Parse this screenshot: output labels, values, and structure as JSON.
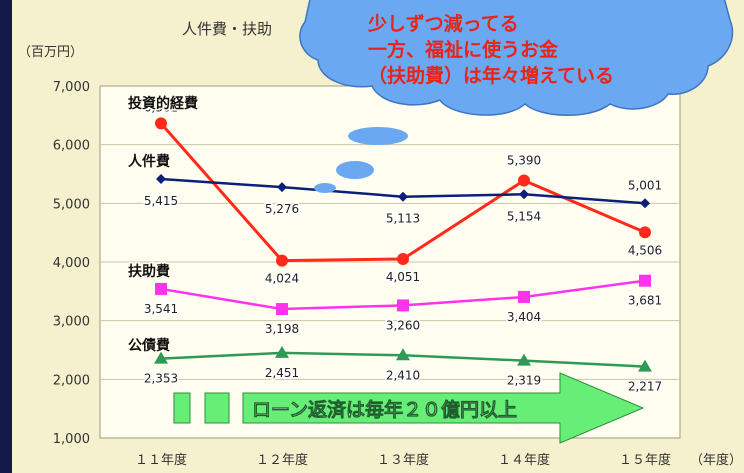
{
  "chart_data": {
    "type": "line",
    "title": "人件費・扶助",
    "yunit": "（百万円）",
    "xunit": "（年度）",
    "categories": [
      "１１年度",
      "１２年度",
      "１３年度",
      "１４年度",
      "１５年度"
    ],
    "yticks": [
      "1,000",
      "2,000",
      "3,000",
      "4,000",
      "5,000",
      "6,000",
      "7,000"
    ],
    "ylim": [
      1000,
      7000
    ],
    "grid": true,
    "series": [
      {
        "name": "投資的経費",
        "color": "#ff2a1a",
        "marker": "circle",
        "values": [
          6362,
          4024,
          4051,
          5390,
          4506
        ],
        "labels": [
          "6,362",
          "4,024",
          "4,051",
          "5,390",
          "4,506"
        ]
      },
      {
        "name": "人件費",
        "color": "#0c1f7a",
        "marker": "diamond",
        "values": [
          5415,
          5276,
          5113,
          5154,
          5001
        ],
        "labels": [
          "5,415",
          "5,276",
          "5,113",
          "5,154",
          "5,001"
        ]
      },
      {
        "name": "扶助費",
        "color": "#ff33ee",
        "marker": "square",
        "values": [
          3541,
          3198,
          3260,
          3404,
          3681
        ],
        "labels": [
          "3,541",
          "3,198",
          "3,260",
          "3,404",
          "3,681"
        ]
      },
      {
        "name": "公債費",
        "color": "#2f9a55",
        "marker": "triangle",
        "values": [
          2353,
          2451,
          2410,
          2319,
          2217
        ],
        "labels": [
          "2,353",
          "2,451",
          "2,410",
          "2,319",
          "2,217"
        ]
      }
    ]
  },
  "callout": {
    "lines": [
      "少しずつ減ってる",
      "一方、福祉に使うお金",
      "（扶助費）は年々増えている"
    ],
    "color": "#e8231a",
    "fill": "#6aa9f2"
  },
  "arrow": {
    "label": "ローン返済は毎年２０億円以上",
    "fill": "#66ee77"
  }
}
